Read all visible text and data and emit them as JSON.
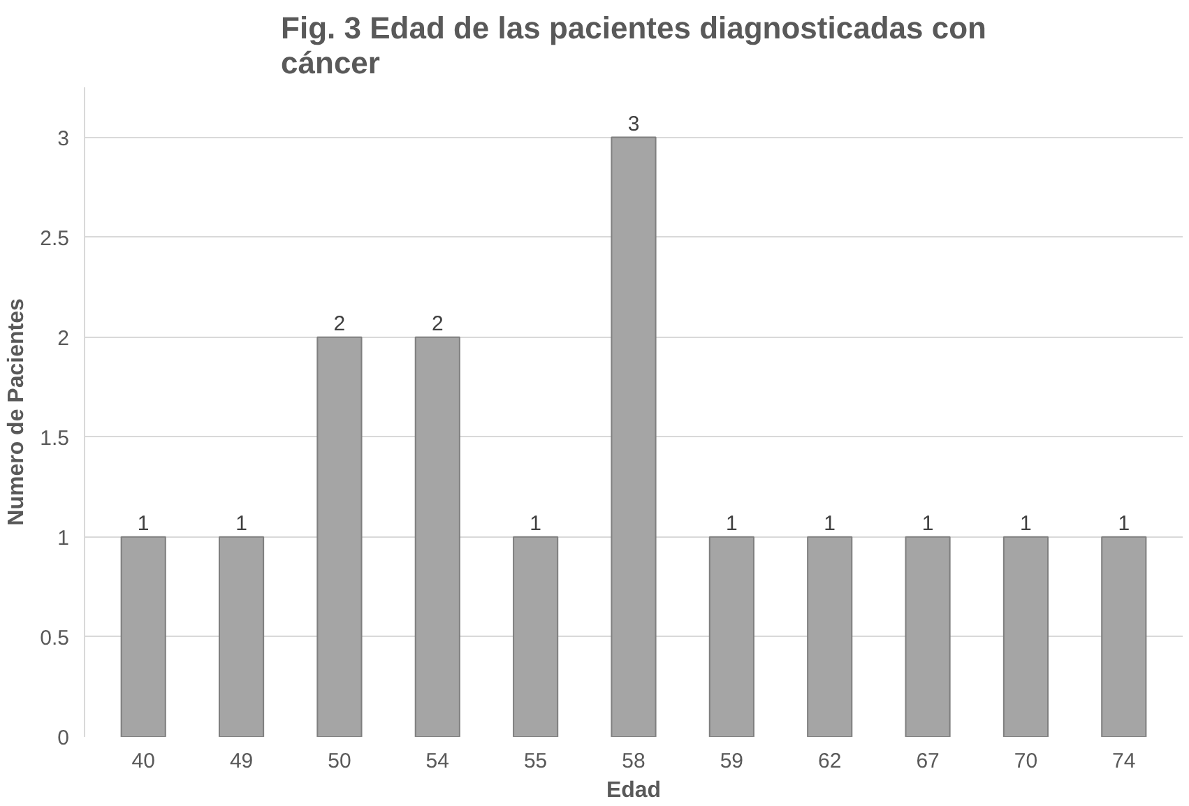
{
  "chart_data": {
    "type": "bar",
    "title": "Fig. 3 Edad de las pacientes diagnosticadas con cáncer",
    "xlabel": "Edad",
    "ylabel": "Numero de Pacientes",
    "categories": [
      "40",
      "49",
      "50",
      "54",
      "55",
      "58",
      "59",
      "62",
      "67",
      "70",
      "74"
    ],
    "values": [
      1,
      1,
      2,
      2,
      1,
      3,
      1,
      1,
      1,
      1,
      1
    ],
    "color": "#a5a5a5",
    "ylim": [
      0,
      3.25
    ],
    "yticks": [
      0,
      {
        "value": 0.5,
        "label": "0.5"
      },
      1,
      {
        "value": 1.5,
        "label": "1.5"
      },
      2,
      {
        "value": 2.5,
        "label": "2.5"
      },
      3
    ],
    "grid": "y",
    "data_labels": true
  }
}
